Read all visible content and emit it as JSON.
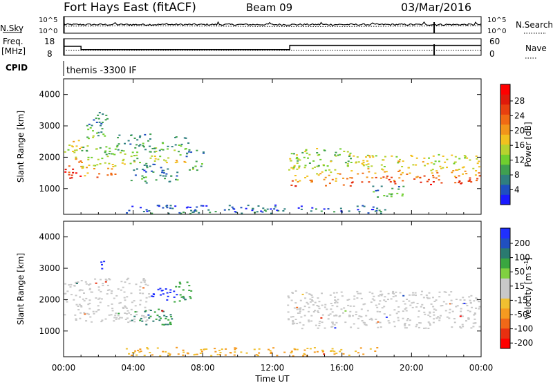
{
  "header": {
    "station": "Fort Hays East (fitACF)",
    "beam": "Beam 09",
    "date": "03/Mar/2016"
  },
  "noise_panel": {
    "left_label": "N.Sky",
    "right_label": "N.Search",
    "left_ticks": [
      "10^5",
      "10^0"
    ],
    "right_ticks": [
      "10^5",
      "10^0"
    ]
  },
  "freq_panel": {
    "left_label_top": "Freq.",
    "left_label_bottom": "[MHz]",
    "right_label": "Nave",
    "left_ticks": [
      "18",
      "8"
    ],
    "right_ticks": [
      "60",
      "0"
    ]
  },
  "cpid": {
    "label": "CPID",
    "program": "themis -3300 IF"
  },
  "axes": {
    "ylabel": "Slant Range [km]",
    "xlabel": "Time UT",
    "yticks": [
      "4000",
      "3000",
      "2000",
      "1000"
    ],
    "xticks": [
      "00:00",
      "04:00",
      "08:00",
      "12:00",
      "16:00",
      "20:00",
      "00:00"
    ]
  },
  "colorbars": {
    "power": {
      "label": "Power [dB]",
      "ticks": [
        "28",
        "24",
        "20",
        "16",
        "12",
        "8",
        "4"
      ],
      "colors": [
        "#1a1aff",
        "#1f4fbf",
        "#2f7f7f",
        "#3fa050",
        "#6fcf2f",
        "#b7d22f",
        "#f2c11f",
        "#f2951a",
        "#f06a14",
        "#e8400f",
        "#e01a0a",
        "#ff0000"
      ]
    },
    "velocity": {
      "label_main": "Velocity [m s",
      "label_sup": "-1",
      "label_end": "]",
      "ticks": [
        "200",
        "100",
        "50",
        "15",
        "-15",
        "-50",
        "-100",
        "-200"
      ],
      "colors": [
        "#2030ff",
        "#2050c0",
        "#2a7a70",
        "#3aa640",
        "#80d040",
        "#c8c8c8",
        "#c8c8c8",
        "#f0c030",
        "#f59a20",
        "#f06818",
        "#e83010",
        "#ff0000"
      ]
    }
  },
  "chart_data": [
    {
      "type": "line",
      "name": "noise",
      "x_range": [
        0,
        24
      ],
      "ylim_log10": [
        0,
        5
      ],
      "sky_level_log10": 2.6,
      "search_level_log10": 2.1
    },
    {
      "type": "line",
      "name": "frequency",
      "x_range": [
        0,
        24
      ],
      "freq_ylim": [
        8,
        18
      ],
      "nave_ylim": [
        0,
        60
      ],
      "freq_steps": [
        {
          "t0": 0,
          "t1": 1.0,
          "value": 13.4
        },
        {
          "t0": 1.0,
          "t1": 13.0,
          "value": 11.4
        },
        {
          "t0": 13.0,
          "t1": 24,
          "value": 14.0
        }
      ],
      "nave_level": 18
    },
    {
      "type": "heatmap",
      "name": "power",
      "x_range": [
        0,
        24
      ],
      "ylim": [
        180,
        4500
      ],
      "regions": [
        {
          "t0": 0.0,
          "t1": 1.0,
          "r0": 1350,
          "r1": 2600,
          "level": 0.95
        },
        {
          "t0": 1.0,
          "t1": 3.0,
          "r0": 1350,
          "r1": 2400,
          "level": 0.7
        },
        {
          "t0": 1.3,
          "t1": 2.5,
          "r0": 2600,
          "r1": 3500,
          "level": 0.4
        },
        {
          "t0": 3.0,
          "t1": 5.0,
          "r0": 1800,
          "r1": 2800,
          "level": 0.45
        },
        {
          "t0": 5.0,
          "t1": 7.2,
          "r0": 1850,
          "r1": 2700,
          "level": 0.55
        },
        {
          "t0": 7.0,
          "t1": 8.1,
          "r0": 1600,
          "r1": 2300,
          "level": 0.4
        },
        {
          "t0": 3.8,
          "t1": 6.5,
          "r0": 1200,
          "r1": 1800,
          "level": 0.3
        },
        {
          "t0": 12.9,
          "t1": 16.5,
          "r0": 1100,
          "r1": 2300,
          "level": 0.75
        },
        {
          "t0": 16.5,
          "t1": 24,
          "r0": 1150,
          "r1": 2100,
          "level": 0.85
        },
        {
          "t0": 17.5,
          "t1": 19.5,
          "r0": 750,
          "r1": 1150,
          "level": 0.35
        },
        {
          "t0": 3.5,
          "t1": 18.5,
          "r0": 180,
          "r1": 500,
          "level": 0.25
        }
      ]
    },
    {
      "type": "heatmap",
      "name": "velocity",
      "x_range": [
        0,
        24
      ],
      "ylim": [
        180,
        4500
      ],
      "regions": [
        {
          "t0": 0.0,
          "t1": 5.0,
          "r0": 1300,
          "r1": 2700,
          "vel": 0
        },
        {
          "t0": 2.0,
          "t1": 2.5,
          "r0": 3000,
          "r1": 3400,
          "vel": 200
        },
        {
          "t0": 5.0,
          "t1": 6.5,
          "r0": 1900,
          "r1": 2400,
          "vel": 200
        },
        {
          "t0": 6.3,
          "t1": 7.3,
          "r0": 1900,
          "r1": 2600,
          "vel": 60
        },
        {
          "t0": 3.8,
          "t1": 6.3,
          "r0": 1200,
          "r1": 1750,
          "vel": 70
        },
        {
          "t0": 12.8,
          "t1": 24,
          "r0": 1100,
          "r1": 2300,
          "vel": 0
        },
        {
          "t0": 3.5,
          "t1": 18.5,
          "r0": 180,
          "r1": 500,
          "vel": -30
        }
      ]
    }
  ]
}
